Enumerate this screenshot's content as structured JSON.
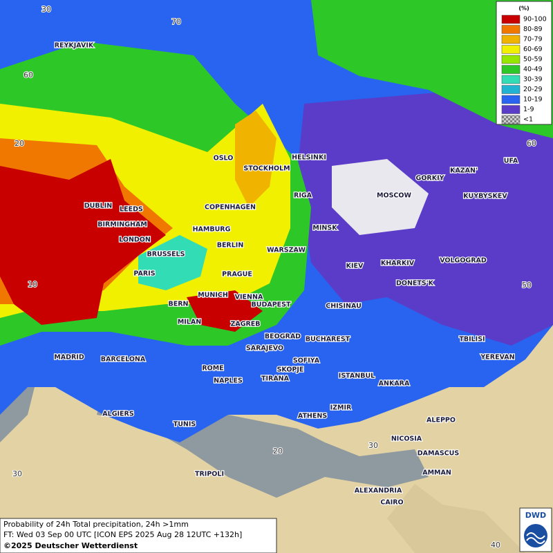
{
  "legend": {
    "title": "(%)",
    "items": [
      {
        "label": "90-100",
        "color": "#c80000"
      },
      {
        "label": "80-89",
        "color": "#f07800"
      },
      {
        "label": "70-79",
        "color": "#f0b400"
      },
      {
        "label": "60-69",
        "color": "#f0f000"
      },
      {
        "label": "50-59",
        "color": "#96e600"
      },
      {
        "label": "40-49",
        "color": "#2dc828"
      },
      {
        "label": "30-39",
        "color": "#32dcb4"
      },
      {
        "label": "20-29",
        "color": "#20b4d2"
      },
      {
        "label": "10-19",
        "color": "#2864f0"
      },
      {
        "label": "1-9",
        "color": "#5a3cc8"
      },
      {
        "label": "<1",
        "color": "#a0a0a0"
      }
    ]
  },
  "cities": [
    "REYKJAVIK",
    "OSLO",
    "STOCKHOLM",
    "HELSINKI",
    "DUBLIN",
    "LEEDS",
    "BIRMINGHAM",
    "LONDON",
    "COPENHAGEN",
    "RIGA",
    "MOSCOW",
    "GORKIY",
    "KAZAN'",
    "UFA",
    "KUYBYSKEV",
    "HAMBURG",
    "BERLIN",
    "MINSK",
    "WARSZAW",
    "BRUSSELS",
    "KIEV",
    "KHARKIV",
    "VOLGOGRAD",
    "PARIS",
    "PRAGUE",
    "DONETS'K",
    "MUNICH",
    "VIENNA",
    "BERN",
    "BUDAPEST",
    "CHISINAU",
    "MILAN",
    "ZAGREB",
    "BEOGRAD",
    "BUCHAREST",
    "TBILISI",
    "SARAJEVO",
    "MADRID",
    "BARCELONA",
    "ROME",
    "SOFIYA",
    "YEREVAN",
    "SKOPJE",
    "NAPLES",
    "TIRANA",
    "ISTANBUL",
    "ANKARA",
    "ALGIERS",
    "IZMIR",
    "ATHENS",
    "ALEPPO",
    "TUNIS",
    "NICOSIA",
    "DAMASCUS",
    "AMMAN",
    "TRIPOLI",
    "ALEXANDRIA",
    "CAIRO"
  ],
  "graticule_labels": [
    30,
    70,
    60,
    20,
    10,
    60,
    50,
    20,
    30,
    30,
    40
  ],
  "footer": {
    "product": "Probability of 24h Total precipitation, 24h >1mm",
    "forecast_time": "FT: Wed 03 Sep 00 UTC [ICON EPS 2025 Aug 28 12UTC +132h]",
    "copyright": "©2025 Deutscher Wetterdienst"
  },
  "logo": "DWD"
}
